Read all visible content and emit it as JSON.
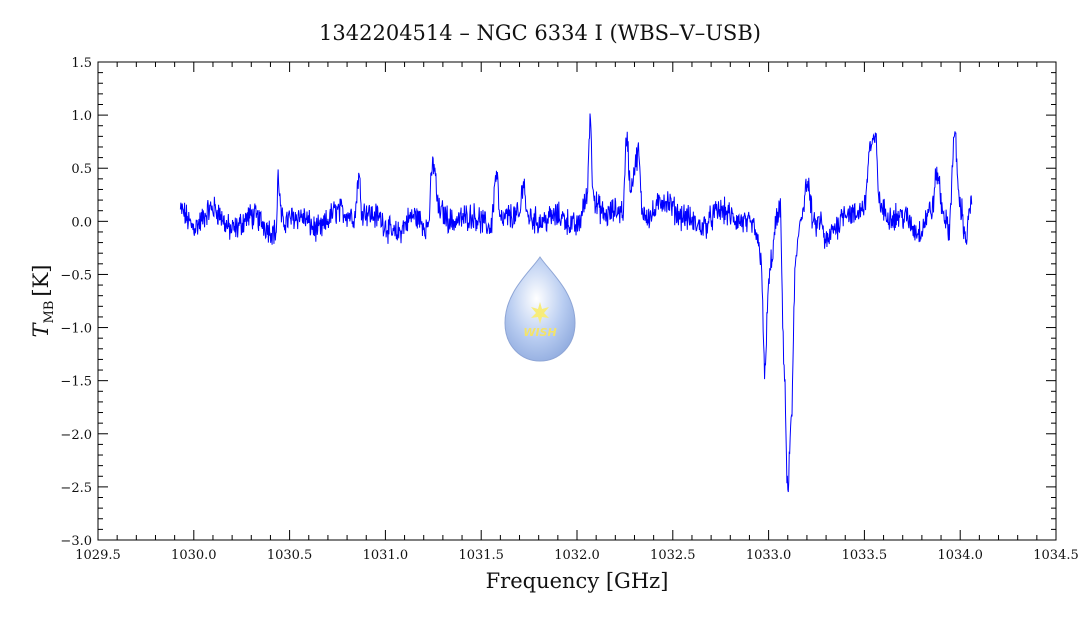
{
  "chart_data": {
    "type": "line",
    "title": "1342204514 – NGC 6334 I (WBS–V–USB)",
    "xlabel": "Frequency [GHz]",
    "ylabel_main": "T",
    "ylabel_sub": "MB",
    "ylabel_unit": "[K]",
    "xlim": [
      1029.5,
      1034.5
    ],
    "ylim": [
      -3.0,
      1.5
    ],
    "x_ticks": [
      1029.5,
      1030.0,
      1030.5,
      1031.0,
      1031.5,
      1032.0,
      1032.5,
      1033.0,
      1033.5,
      1034.0,
      1034.5
    ],
    "x_tick_labels": [
      "1029.5",
      "1030.0",
      "1030.5",
      "1031.0",
      "1031.5",
      "1032.0",
      "1032.5",
      "1033.0",
      "1033.5",
      "1034.0",
      "1034.5"
    ],
    "y_ticks": [
      -3.0,
      -2.5,
      -2.0,
      -1.5,
      -1.0,
      -0.5,
      0.0,
      0.5,
      1.0,
      1.5
    ],
    "y_tick_labels": [
      "−3.0",
      "−2.5",
      "−2.0",
      "−1.5",
      "−1.0",
      "−0.5",
      "0.0",
      "0.5",
      "1.0",
      "1.5"
    ],
    "grid": false,
    "legend": "none",
    "series": [
      {
        "color": "#0000ff",
        "x": [
          1029.93,
          1030.0,
          1030.1,
          1030.2,
          1030.3,
          1030.43,
          1030.44,
          1030.46,
          1030.55,
          1030.65,
          1030.75,
          1030.84,
          1030.86,
          1030.88,
          1030.95,
          1031.05,
          1031.15,
          1031.22,
          1031.25,
          1031.28,
          1031.35,
          1031.45,
          1031.55,
          1031.58,
          1031.6,
          1031.65,
          1031.7,
          1031.72,
          1031.74,
          1031.8,
          1031.9,
          1032.0,
          1032.05,
          1032.07,
          1032.08,
          1032.1,
          1032.15,
          1032.2,
          1032.24,
          1032.26,
          1032.28,
          1032.3,
          1032.32,
          1032.34,
          1032.38,
          1032.45,
          1032.55,
          1032.65,
          1032.75,
          1032.85,
          1032.92,
          1032.96,
          1032.98,
          1033.0,
          1033.02,
          1033.04,
          1033.06,
          1033.08,
          1033.1,
          1033.12,
          1033.14,
          1033.17,
          1033.2,
          1033.24,
          1033.27,
          1033.3,
          1033.35,
          1033.4,
          1033.45,
          1033.5,
          1033.53,
          1033.56,
          1033.58,
          1033.62,
          1033.7,
          1033.78,
          1033.85,
          1033.88,
          1033.91,
          1033.94,
          1033.97,
          1034.0,
          1034.03,
          1034.06
        ],
        "y": [
          0.1,
          -0.05,
          0.12,
          -0.08,
          0.05,
          -0.1,
          0.4,
          0.0,
          0.05,
          -0.08,
          0.1,
          0.05,
          0.42,
          0.1,
          0.05,
          -0.12,
          0.05,
          -0.05,
          0.55,
          0.1,
          0.0,
          0.05,
          -0.05,
          0.45,
          0.0,
          0.05,
          0.05,
          0.4,
          0.05,
          0.0,
          0.05,
          -0.05,
          0.2,
          1.0,
          0.4,
          0.15,
          0.05,
          0.1,
          0.1,
          0.8,
          0.3,
          0.5,
          0.65,
          0.1,
          0.05,
          0.2,
          0.05,
          -0.05,
          0.1,
          0.0,
          -0.05,
          -0.3,
          -1.45,
          -0.6,
          -0.3,
          0.0,
          0.1,
          -1.3,
          -2.55,
          -1.8,
          -0.4,
          0.05,
          0.35,
          -0.05,
          0.0,
          -0.2,
          -0.05,
          0.1,
          0.05,
          0.15,
          0.7,
          0.75,
          0.15,
          0.05,
          0.05,
          -0.1,
          0.1,
          0.45,
          0.1,
          -0.1,
          0.8,
          0.15,
          -0.15,
          0.2
        ]
      }
    ]
  }
}
